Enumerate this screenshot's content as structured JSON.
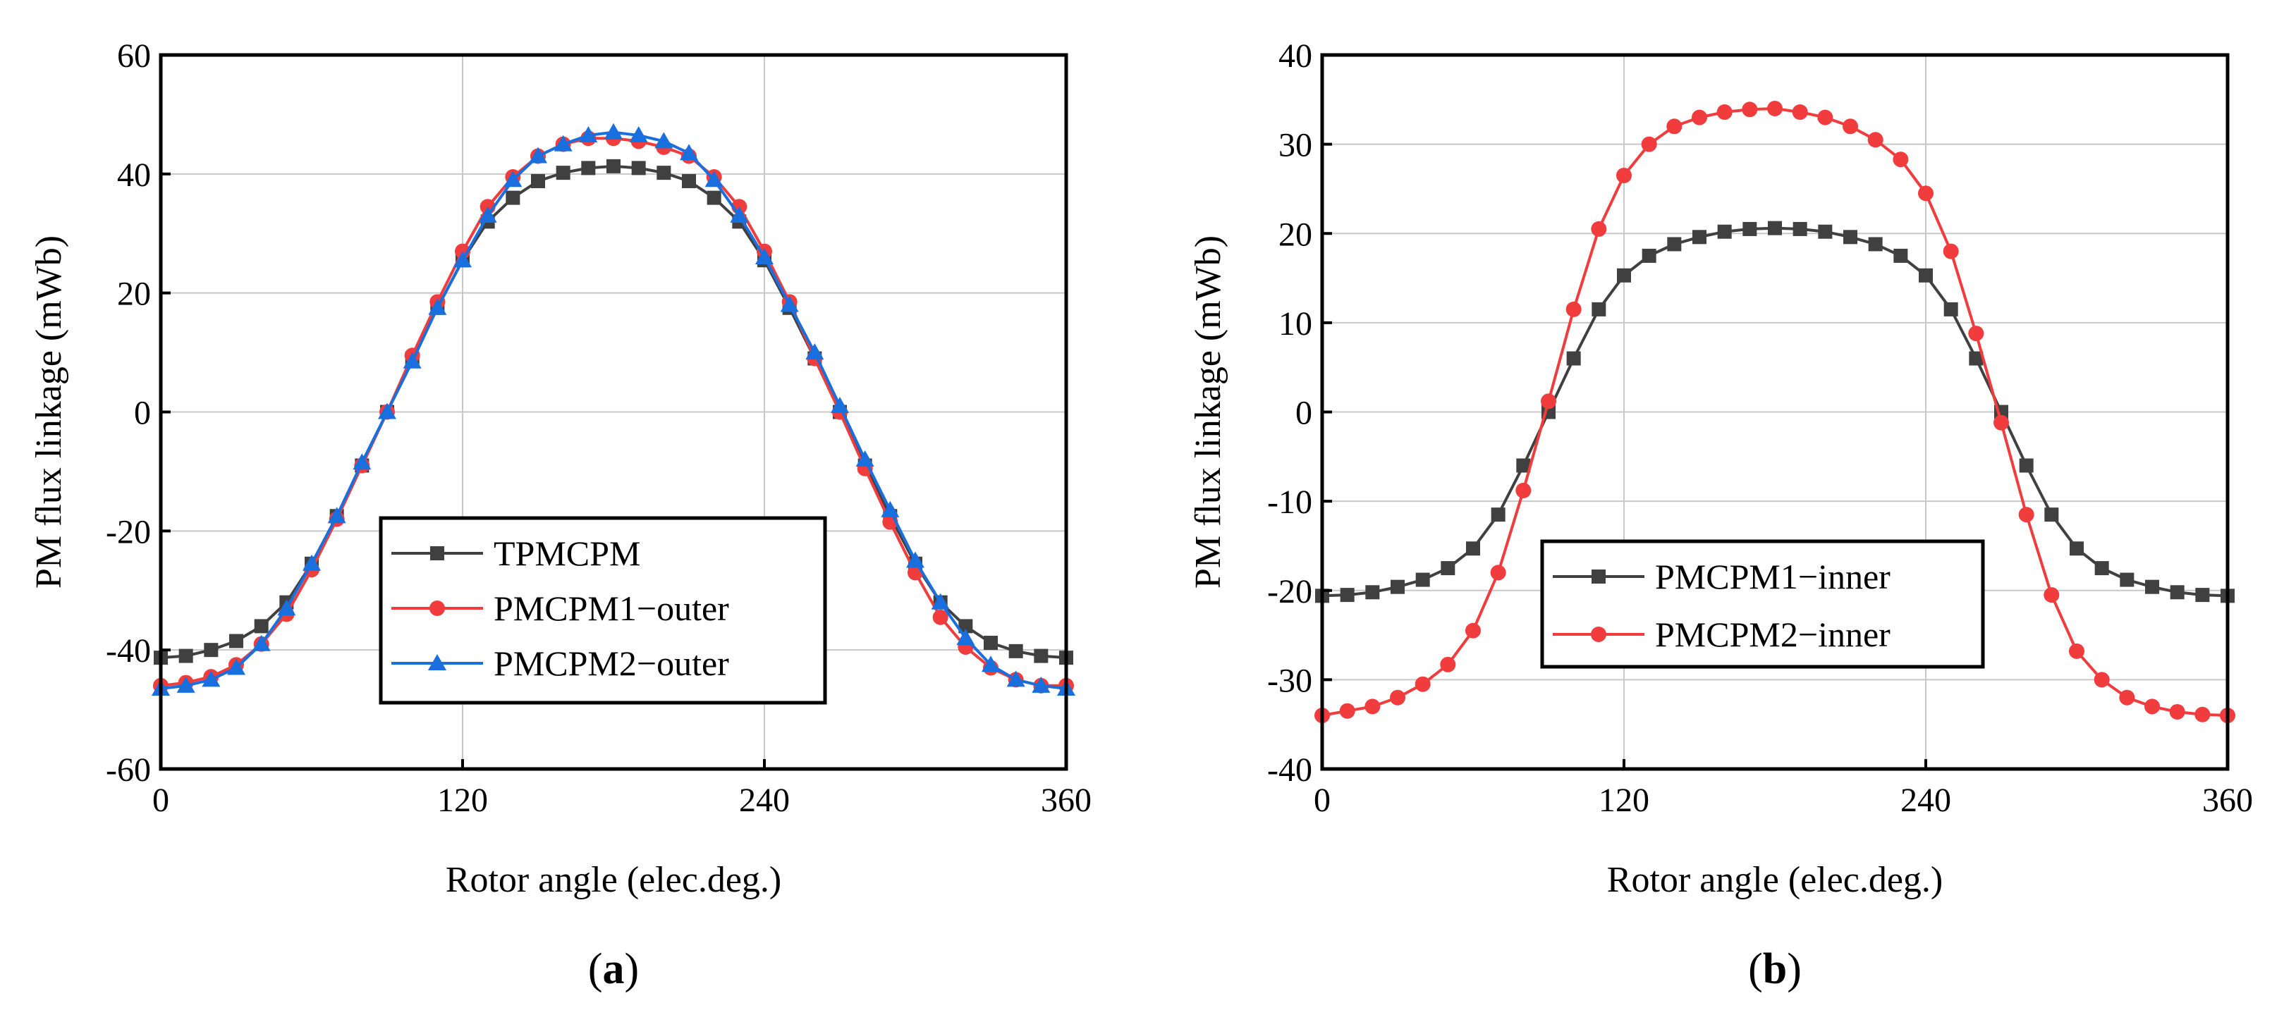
{
  "chart_data": [
    {
      "type": "line",
      "panel_label": "a",
      "xlabel": "Rotor angle (elec.deg.)",
      "ylabel": "PM flux linkage (mWb)",
      "xlim": [
        0,
        360
      ],
      "ylim": [
        -60,
        60
      ],
      "xticks": [
        0,
        120,
        240,
        360
      ],
      "yticks": [
        -60,
        -40,
        -20,
        0,
        20,
        40,
        60
      ],
      "grid": true,
      "legend_position": "center-bottom",
      "x": [
        0,
        10,
        20,
        30,
        40,
        50,
        60,
        70,
        80,
        90,
        100,
        110,
        120,
        130,
        140,
        150,
        160,
        170,
        180,
        190,
        200,
        210,
        220,
        230,
        240,
        250,
        260,
        270,
        280,
        290,
        300,
        310,
        320,
        330,
        340,
        350,
        360
      ],
      "series": [
        {
          "name": "TPMCPM",
          "color": "#404040",
          "marker": "square",
          "values": [
            -41.3,
            -41.0,
            -40.0,
            -38.5,
            -36.0,
            -32.0,
            -25.5,
            -17.5,
            -9.0,
            0.0,
            9.0,
            17.5,
            25.5,
            32.0,
            36.0,
            38.8,
            40.2,
            41.0,
            41.3,
            41.0,
            40.2,
            38.8,
            36.0,
            32.0,
            25.5,
            17.5,
            9.0,
            0.0,
            -9.0,
            -17.5,
            -25.5,
            -32.0,
            -36.0,
            -38.8,
            -40.2,
            -41.0,
            -41.3
          ]
        },
        {
          "name": "PMCPM1−outer",
          "color": "#f03c3c",
          "marker": "circle",
          "values": [
            -46.0,
            -45.5,
            -44.5,
            -42.5,
            -39.0,
            -34.0,
            -26.5,
            -18.0,
            -9.0,
            0.0,
            9.5,
            18.5,
            27.0,
            34.5,
            39.5,
            43.0,
            45.0,
            46.0,
            46.0,
            45.5,
            44.5,
            43.0,
            39.5,
            34.5,
            27.0,
            18.5,
            9.0,
            0.0,
            -9.5,
            -18.5,
            -27.0,
            -34.5,
            -39.5,
            -43.0,
            -45.0,
            -46.0,
            -46.0
          ]
        },
        {
          "name": "PMCPM2−outer",
          "color": "#1a6fdf",
          "marker": "triangle",
          "values": [
            -46.5,
            -46.0,
            -45.0,
            -43.0,
            -39.0,
            -33.0,
            -25.5,
            -17.5,
            -8.5,
            0.0,
            8.5,
            17.5,
            25.5,
            33.0,
            39.0,
            43.0,
            45.0,
            46.5,
            47.0,
            46.5,
            45.5,
            43.5,
            39.0,
            33.0,
            26.0,
            18.0,
            10.0,
            1.0,
            -8.0,
            -16.5,
            -25.0,
            -32.0,
            -38.0,
            -42.5,
            -45.0,
            -46.0,
            -46.5
          ]
        }
      ]
    },
    {
      "type": "line",
      "panel_label": "b",
      "xlabel": "Rotor angle (elec.deg.)",
      "ylabel": "PM flux linkage (mWb)",
      "xlim": [
        0,
        360
      ],
      "ylim": [
        -40,
        40
      ],
      "xticks": [
        0,
        120,
        240,
        360
      ],
      "yticks": [
        -40,
        -30,
        -20,
        -10,
        0,
        10,
        20,
        30,
        40
      ],
      "grid": true,
      "legend_position": "center-bottom",
      "x": [
        0,
        10,
        20,
        30,
        40,
        50,
        60,
        70,
        80,
        90,
        100,
        110,
        120,
        130,
        140,
        150,
        160,
        170,
        180,
        190,
        200,
        210,
        220,
        230,
        240,
        250,
        260,
        270,
        280,
        290,
        300,
        310,
        320,
        330,
        340,
        350,
        360
      ],
      "series": [
        {
          "name": "PMCPM1−inner",
          "color": "#404040",
          "marker": "square",
          "values": [
            -20.6,
            -20.5,
            -20.2,
            -19.6,
            -18.8,
            -17.5,
            -15.3,
            -11.5,
            -6.0,
            0.0,
            6.0,
            11.5,
            15.3,
            17.5,
            18.8,
            19.6,
            20.2,
            20.5,
            20.6,
            20.5,
            20.2,
            19.6,
            18.8,
            17.5,
            15.3,
            11.5,
            6.0,
            0.0,
            -6.0,
            -11.5,
            -15.3,
            -17.5,
            -18.8,
            -19.6,
            -20.2,
            -20.5,
            -20.6
          ]
        },
        {
          "name": "PMCPM2−inner",
          "color": "#f03c3c",
          "marker": "circle",
          "values": [
            -34.0,
            -33.5,
            -33.0,
            -32.0,
            -30.5,
            -28.3,
            -24.5,
            -18.0,
            -8.8,
            1.2,
            11.5,
            20.5,
            26.5,
            30.0,
            32.0,
            33.0,
            33.6,
            33.9,
            34.0,
            33.6,
            33.0,
            32.0,
            30.5,
            28.3,
            24.5,
            18.0,
            8.8,
            -1.2,
            -11.5,
            -20.5,
            -26.8,
            -30.0,
            -32.0,
            -33.0,
            -33.6,
            -33.9,
            -34.0
          ]
        }
      ]
    }
  ]
}
